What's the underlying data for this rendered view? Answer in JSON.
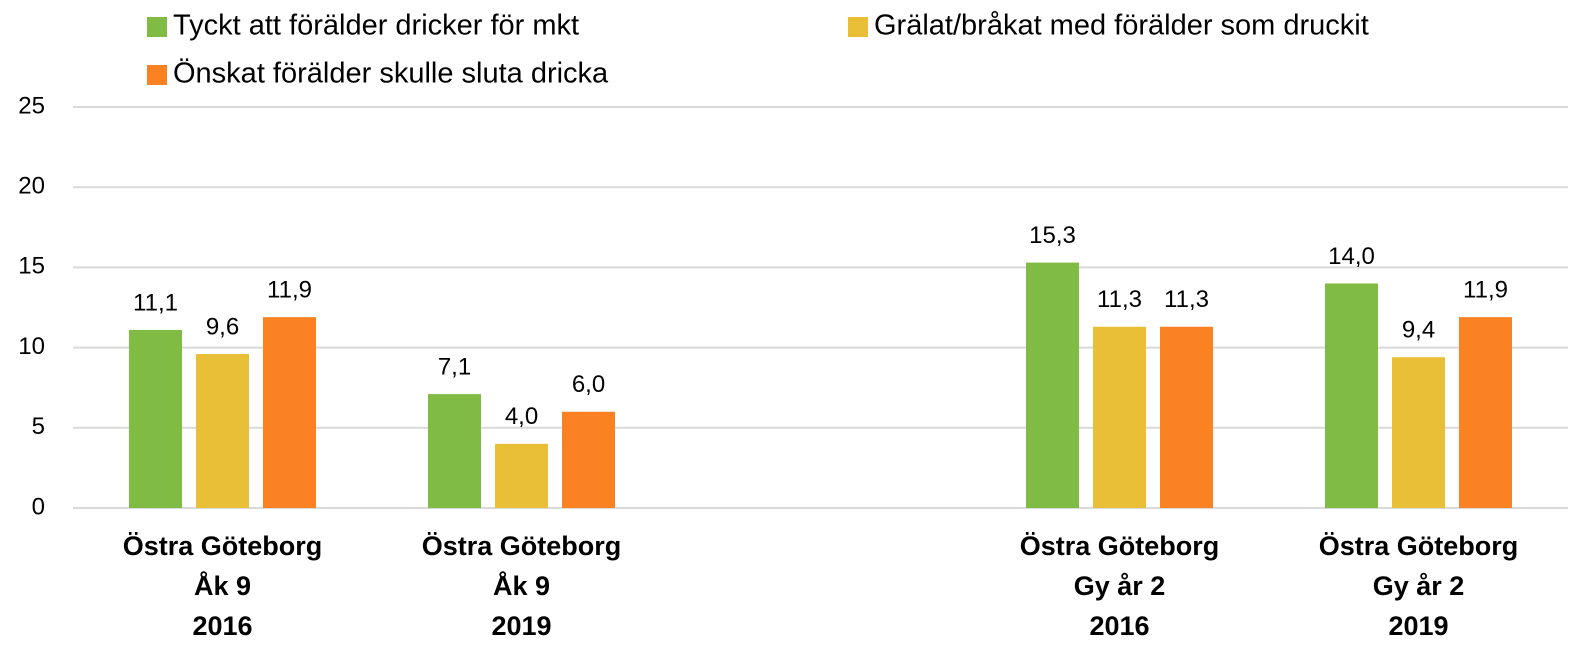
{
  "chart_data": {
    "type": "bar",
    "categories": [
      "Östra Göteborg\nÅk 9\n2016",
      "Östra Göteborg\nÅk 9\n2019",
      null,
      "Östra Göteborg\nGy år 2\n2016",
      "Östra Göteborg\nGy år 2\n2019"
    ],
    "series": [
      {
        "name": "Tyckt att förälder dricker för mkt",
        "color": "#80bc44",
        "values": [
          11.1,
          7.1,
          null,
          15.3,
          14.0
        ],
        "value_labels": [
          "11,1",
          "7,1",
          null,
          "15,3",
          "14,0"
        ]
      },
      {
        "name": "Grälat/bråkat med förälder som druckit",
        "color": "#e9bf37",
        "values": [
          9.6,
          4.0,
          null,
          11.3,
          9.4
        ],
        "value_labels": [
          "9,6",
          "4,0",
          null,
          "11,3",
          "9,4"
        ]
      },
      {
        "name": "Önskat förälder skulle sluta dricka",
        "color": "#fb8222",
        "values": [
          11.9,
          6.0,
          null,
          11.3,
          11.9
        ],
        "value_labels": [
          "11,9",
          "6,0",
          null,
          "11,3",
          "11,9"
        ]
      }
    ],
    "ylim": [
      0,
      25
    ],
    "yticks": [
      0,
      5,
      10,
      15,
      20,
      25
    ],
    "grid": true,
    "legend": "top"
  }
}
